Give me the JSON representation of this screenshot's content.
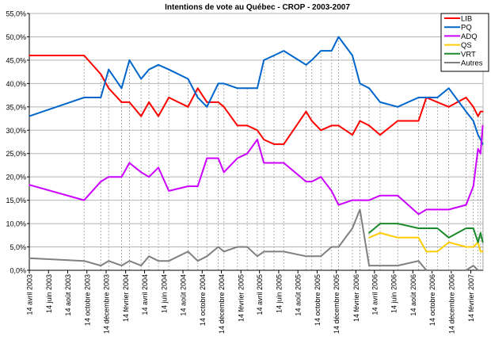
{
  "chart_data": {
    "type": "line",
    "title": "Intentions de vote au Québec - CROP - 2003-2007",
    "xlabel": "",
    "ylabel": "",
    "ylim": [
      0,
      55
    ],
    "xlim": [
      "2003-04-14",
      "2007-03-25"
    ],
    "grid": "horizontal",
    "legend_position": "top-right",
    "y_ticks": [
      "0,0%",
      "5,0%",
      "10,0%",
      "15,0%",
      "20,0%",
      "25,0%",
      "30,0%",
      "35,0%",
      "40,0%",
      "45,0%",
      "50,0%",
      "55,0%"
    ],
    "x_ticks": [
      {
        "date": "2003-04-14",
        "label": "14 avril 2003"
      },
      {
        "date": "2003-06-14",
        "label": "14 juin 2003"
      },
      {
        "date": "2003-08-14",
        "label": "14 août 2003"
      },
      {
        "date": "2003-10-14",
        "label": "14 octobre 2003"
      },
      {
        "date": "2003-12-14",
        "label": "14 décembre 2003"
      },
      {
        "date": "2004-02-14",
        "label": "14 février 2004"
      },
      {
        "date": "2004-04-14",
        "label": "14 avril 2004"
      },
      {
        "date": "2004-06-14",
        "label": "14 juin 2004"
      },
      {
        "date": "2004-08-14",
        "label": "14 août 2004"
      },
      {
        "date": "2004-10-14",
        "label": "14 octobre 2004"
      },
      {
        "date": "2004-12-14",
        "label": "14 décembre 2004"
      },
      {
        "date": "2005-02-14",
        "label": "14 février 2005"
      },
      {
        "date": "2005-04-14",
        "label": "14 avril 2005"
      },
      {
        "date": "2005-06-14",
        "label": "14 juin 2005"
      },
      {
        "date": "2005-08-14",
        "label": "14 août 2005"
      },
      {
        "date": "2005-10-14",
        "label": "14 octobre 2005"
      },
      {
        "date": "2005-12-14",
        "label": "14 décembre 2005"
      },
      {
        "date": "2006-02-14",
        "label": "14 février 2006"
      },
      {
        "date": "2006-04-14",
        "label": "14 avril 2006"
      },
      {
        "date": "2006-06-14",
        "label": "14 juin 2006"
      },
      {
        "date": "2006-08-14",
        "label": "14 août 2006"
      },
      {
        "date": "2006-10-14",
        "label": "14 octobre 2006"
      },
      {
        "date": "2006-12-14",
        "label": "14 décembre 2006"
      },
      {
        "date": "2007-02-14",
        "label": "14 février 2007"
      }
    ],
    "x": [
      "2003-04-14",
      "2003-10-05",
      "2003-11-27",
      "2003-12-22",
      "2004-02-01",
      "2004-02-26",
      "2004-04-03",
      "2004-04-28",
      "2004-05-28",
      "2004-06-30",
      "2004-08-30",
      "2004-09-30",
      "2004-10-29",
      "2004-12-04",
      "2004-12-22",
      "2005-02-03",
      "2005-03-06",
      "2005-04-07",
      "2005-04-28",
      "2005-05-30",
      "2005-06-30",
      "2005-09-09",
      "2005-09-27",
      "2005-10-26",
      "2005-11-29",
      "2005-12-21",
      "2006-02-03",
      "2006-02-27",
      "2006-03-28",
      "2006-05-02",
      "2006-06-27",
      "2006-09-01",
      "2006-09-26",
      "2006-10-31",
      "2006-12-06",
      "2007-01-30",
      "2007-02-22",
      "2007-03-09",
      "2007-03-17",
      "2007-03-24"
    ],
    "series": [
      {
        "name": "LIB",
        "color": "#ff0000",
        "values": [
          46,
          46,
          42,
          39,
          36,
          36,
          33,
          36,
          33,
          37,
          35,
          39,
          36,
          36,
          35,
          31,
          31,
          30,
          28,
          27,
          27,
          34,
          32,
          30,
          31,
          31,
          29,
          32,
          31,
          29,
          32,
          32,
          37,
          36,
          35,
          37,
          35,
          33,
          34,
          34
        ]
      },
      {
        "name": "PQ",
        "color": "#0066cc",
        "values": [
          33,
          37,
          37,
          43,
          39,
          45,
          41,
          43,
          44,
          43,
          41,
          37,
          35,
          40,
          40,
          39,
          39,
          39,
          45,
          46,
          47,
          44,
          45,
          47,
          47,
          50,
          46,
          40,
          39,
          36,
          35,
          37,
          37,
          37,
          39,
          34,
          32,
          29,
          28,
          27
        ]
      },
      {
        "name": "ADQ",
        "color": "#cc00ff",
        "values": [
          18.3,
          15,
          19,
          20,
          20,
          23,
          21,
          20,
          22,
          17,
          18,
          18,
          24,
          24,
          21,
          24,
          25,
          28,
          23,
          23,
          23,
          19,
          19,
          20,
          17,
          14,
          15,
          15,
          15,
          16,
          16,
          12,
          13,
          13,
          13,
          14,
          18,
          26,
          25,
          31
        ]
      },
      {
        "name": "QS",
        "color": "#ffcc00",
        "values": [
          null,
          null,
          null,
          null,
          null,
          null,
          null,
          null,
          null,
          null,
          null,
          null,
          null,
          null,
          null,
          null,
          null,
          null,
          null,
          null,
          null,
          null,
          null,
          null,
          null,
          null,
          null,
          null,
          7,
          8,
          7,
          7,
          4,
          4,
          6,
          5,
          5,
          6,
          4,
          4
        ]
      },
      {
        "name": "VRT",
        "color": "#1a8a2a",
        "values": [
          null,
          null,
          null,
          null,
          null,
          null,
          null,
          null,
          null,
          null,
          null,
          null,
          null,
          null,
          null,
          null,
          null,
          null,
          null,
          null,
          null,
          null,
          null,
          null,
          null,
          null,
          null,
          null,
          8,
          10,
          10,
          9,
          9,
          9,
          7,
          9,
          9,
          6,
          8,
          6
        ]
      },
      {
        "name": "Autres",
        "color": "#808080",
        "values": [
          2.6,
          2,
          1,
          2,
          1,
          2,
          1,
          3,
          2,
          2,
          4,
          2,
          3,
          5,
          4,
          5,
          5,
          3,
          4,
          4,
          4,
          3,
          3,
          3,
          5,
          5,
          9,
          13,
          1,
          1,
          1,
          2,
          0,
          0,
          0,
          0,
          1,
          0,
          0,
          0
        ]
      }
    ]
  }
}
